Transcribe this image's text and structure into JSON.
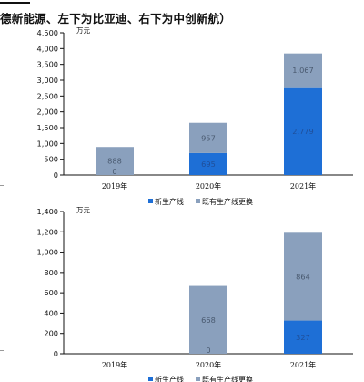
{
  "header": {
    "title": "德新能源、左下为比亚迪、右下为中创新航）"
  },
  "colors": {
    "new_line": "#1e6fd6",
    "existing_line": "#8aa0bd",
    "dark_label": "#4a5a70",
    "light_label": "#1f4f9a",
    "axis": "#111111"
  },
  "chart_data": [
    {
      "type": "bar",
      "stacked": true,
      "unit": "万元",
      "categories": [
        "2019年",
        "2020年",
        "2021年"
      ],
      "ylim": [
        0,
        4500
      ],
      "yticks": [
        0,
        500,
        1000,
        1500,
        2000,
        2500,
        3000,
        3500,
        4000,
        4500
      ],
      "ytick_labels": [
        "0",
        "500",
        "1,000",
        "1,500",
        "2,000",
        "2,500",
        "3,000",
        "3,500",
        "4,000",
        "4,500"
      ],
      "series": [
        {
          "name": "新生产线",
          "values": [
            0,
            695,
            2779
          ],
          "labels": [
            "0",
            "695",
            "2,779"
          ]
        },
        {
          "name": "既有生产线更换",
          "values": [
            888,
            957,
            1067
          ],
          "labels": [
            "888",
            "957",
            "1,067"
          ]
        }
      ],
      "legend": "bottom-center",
      "grid": false
    },
    {
      "type": "bar",
      "stacked": true,
      "unit": "万元",
      "categories": [
        "2019年",
        "2020年",
        "2021年"
      ],
      "ylim": [
        0,
        1400
      ],
      "yticks": [
        0,
        200,
        400,
        600,
        800,
        1000,
        1200,
        1400
      ],
      "ytick_labels": [
        "0",
        "200",
        "400",
        "600",
        "800",
        "1,000",
        "1,200",
        "1,400"
      ],
      "series": [
        {
          "name": "新生产线",
          "values": [
            0,
            0,
            327
          ],
          "labels": [
            "",
            "0",
            "327"
          ]
        },
        {
          "name": "既有生产线更换",
          "values": [
            0,
            668,
            864
          ],
          "labels": [
            "",
            "668",
            "864"
          ]
        }
      ],
      "legend": "bottom-center",
      "grid": false
    }
  ]
}
